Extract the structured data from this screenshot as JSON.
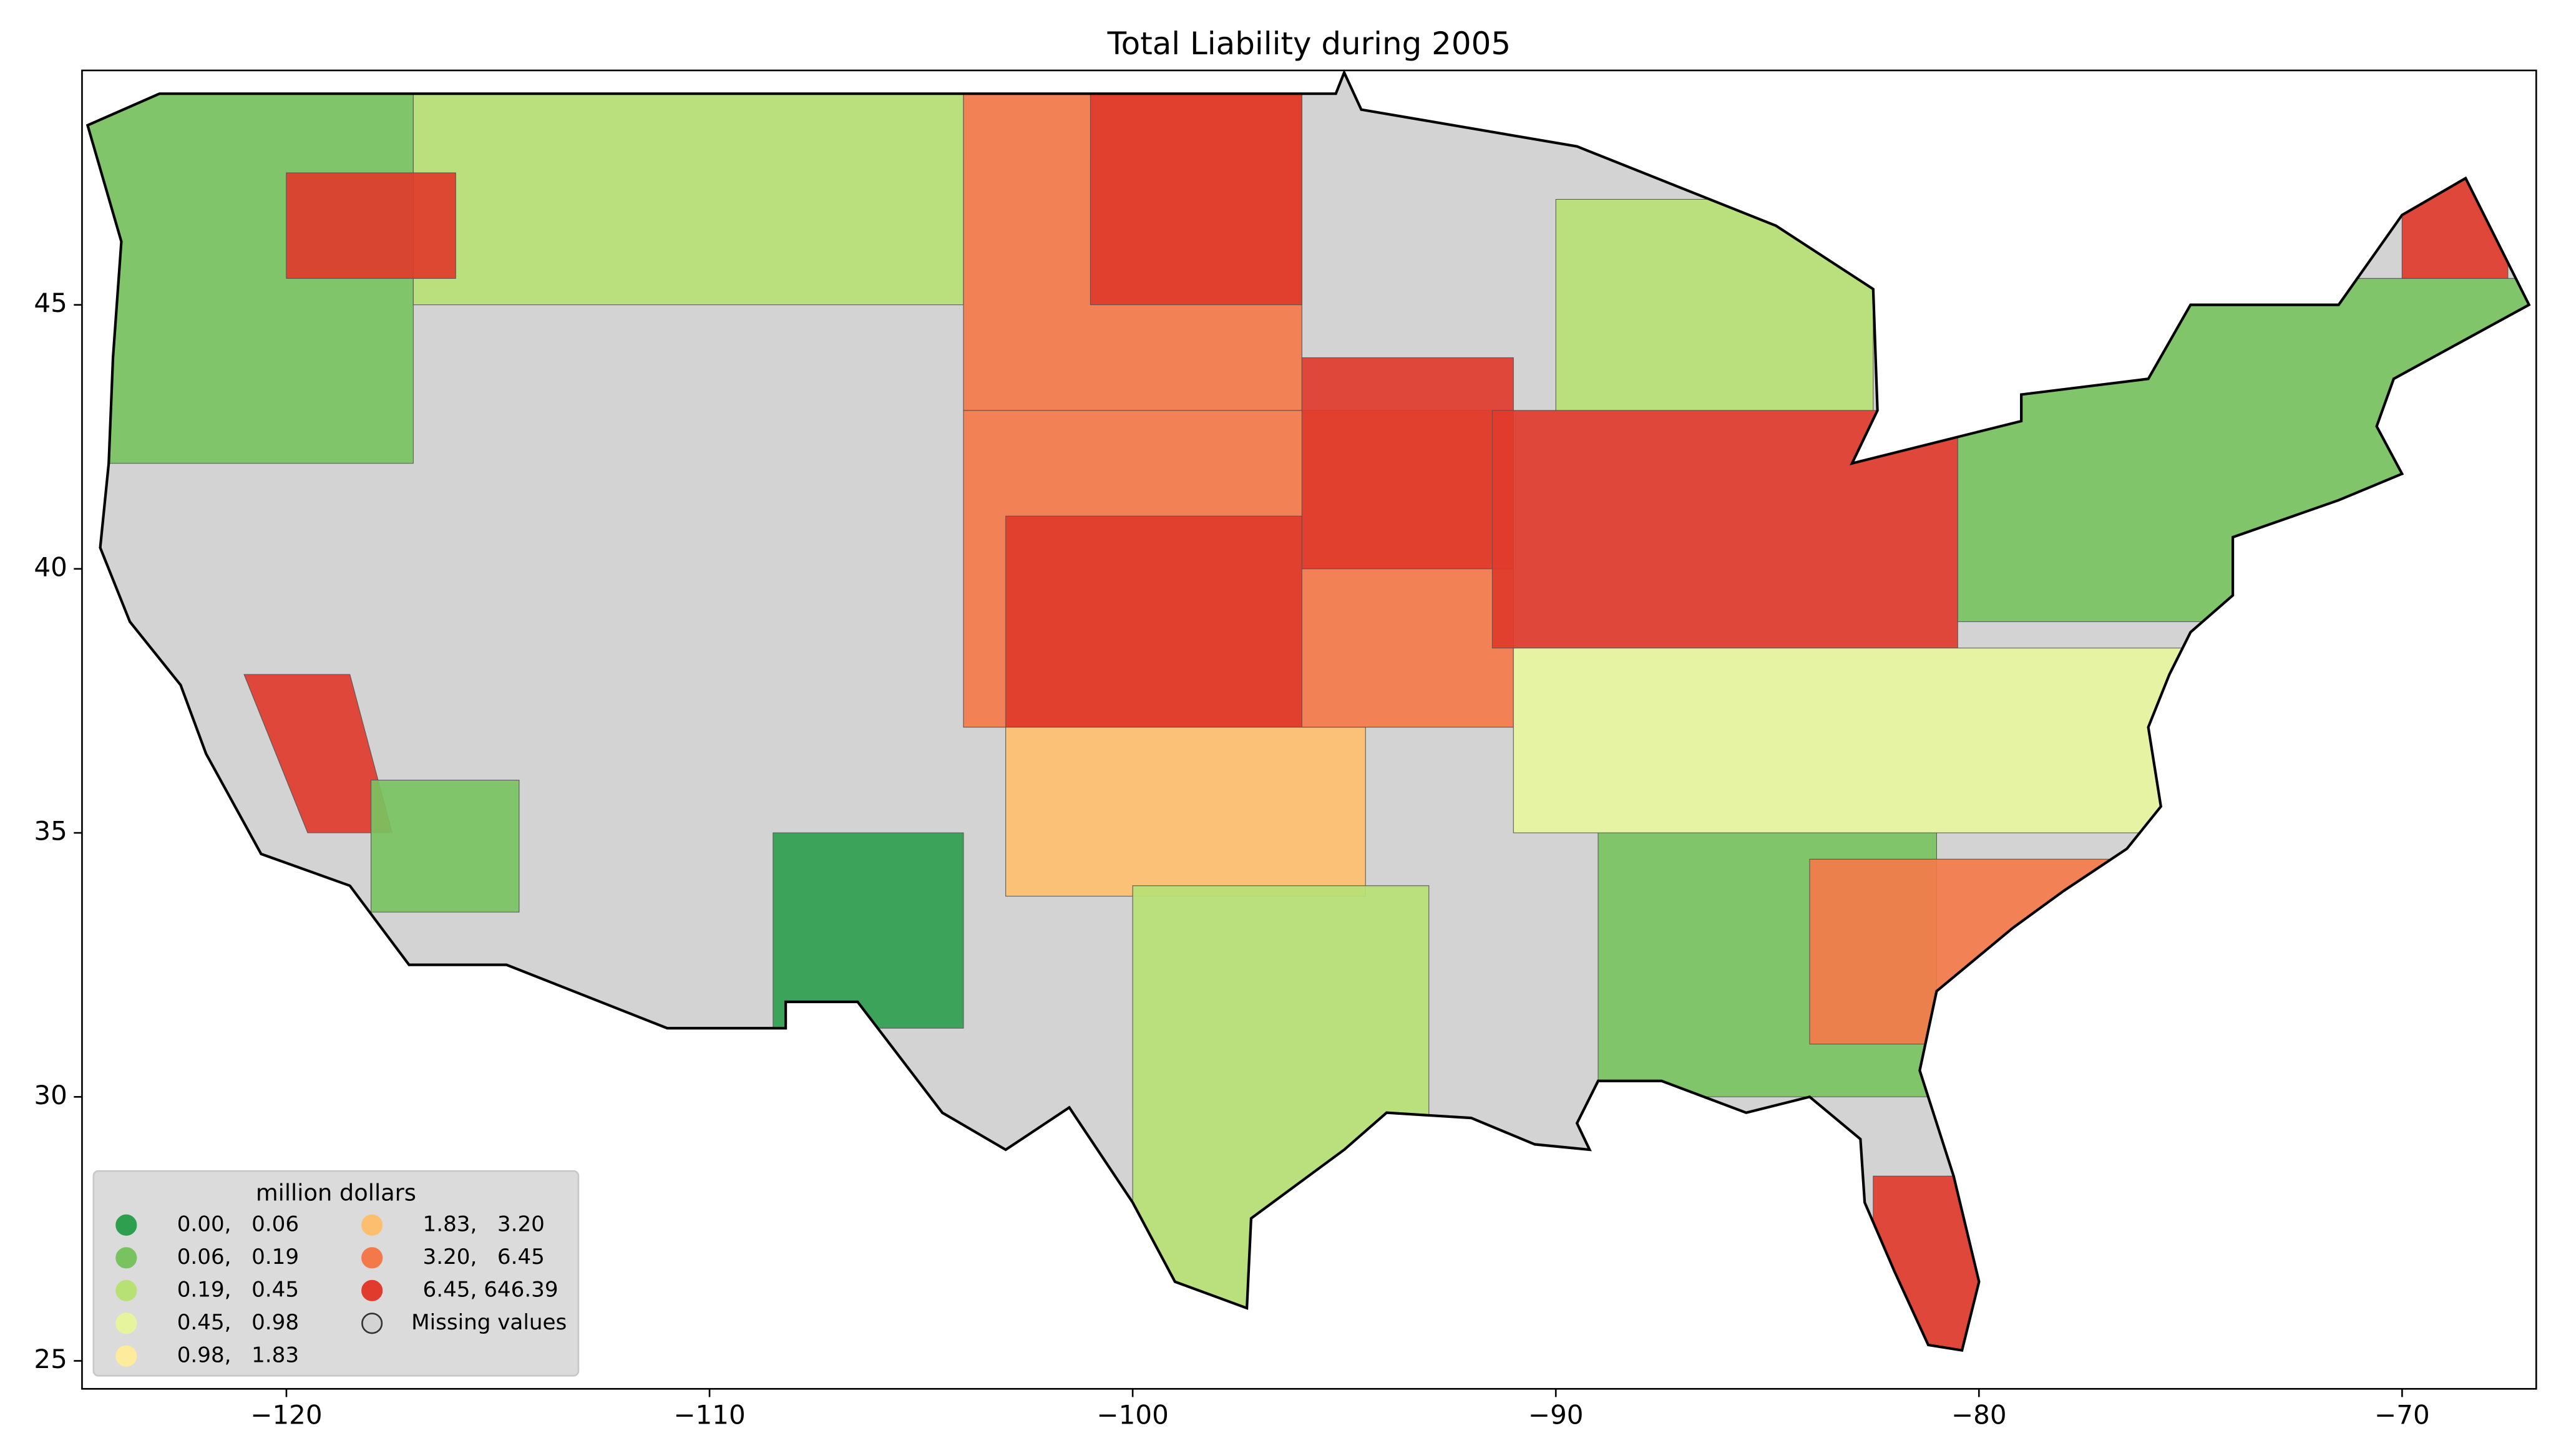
{
  "chart_data": {
    "type": "map",
    "title": "Total Liability during 2005",
    "xlim": [
      -124.83,
      -66.83
    ],
    "ylim": [
      24.47,
      49.44
    ],
    "xticks": [
      {
        "value": -120,
        "label": "−120"
      },
      {
        "value": -110,
        "label": "−110"
      },
      {
        "value": -100,
        "label": "−100"
      },
      {
        "value": -90,
        "label": "−90"
      },
      {
        "value": -80,
        "label": "−80"
      },
      {
        "value": -70,
        "label": "−70"
      }
    ],
    "yticks": [
      25,
      30,
      35,
      40,
      45
    ],
    "legend": {
      "title": "million dollars",
      "corner": "lower left",
      "entries": [
        {
          "label": "0.00,   0.06",
          "color": "#2e9e4f"
        },
        {
          "label": "0.06,   0.19",
          "color": "#78c35f"
        },
        {
          "label": "0.19,   0.45",
          "color": "#b7e075"
        },
        {
          "label": "0.45,   0.98",
          "color": "#e6f59d"
        },
        {
          "label": "0.98,   1.83",
          "color": "#feeb9c"
        },
        {
          "label": "1.83,   3.20",
          "color": "#fdbf6f"
        },
        {
          "label": "3.20,   6.45",
          "color": "#f4794a"
        },
        {
          "label": "6.45, 646.39",
          "color": "#e03b2c"
        }
      ],
      "missing": {
        "label": "Missing values",
        "color": "#d3d3d3"
      }
    }
  }
}
